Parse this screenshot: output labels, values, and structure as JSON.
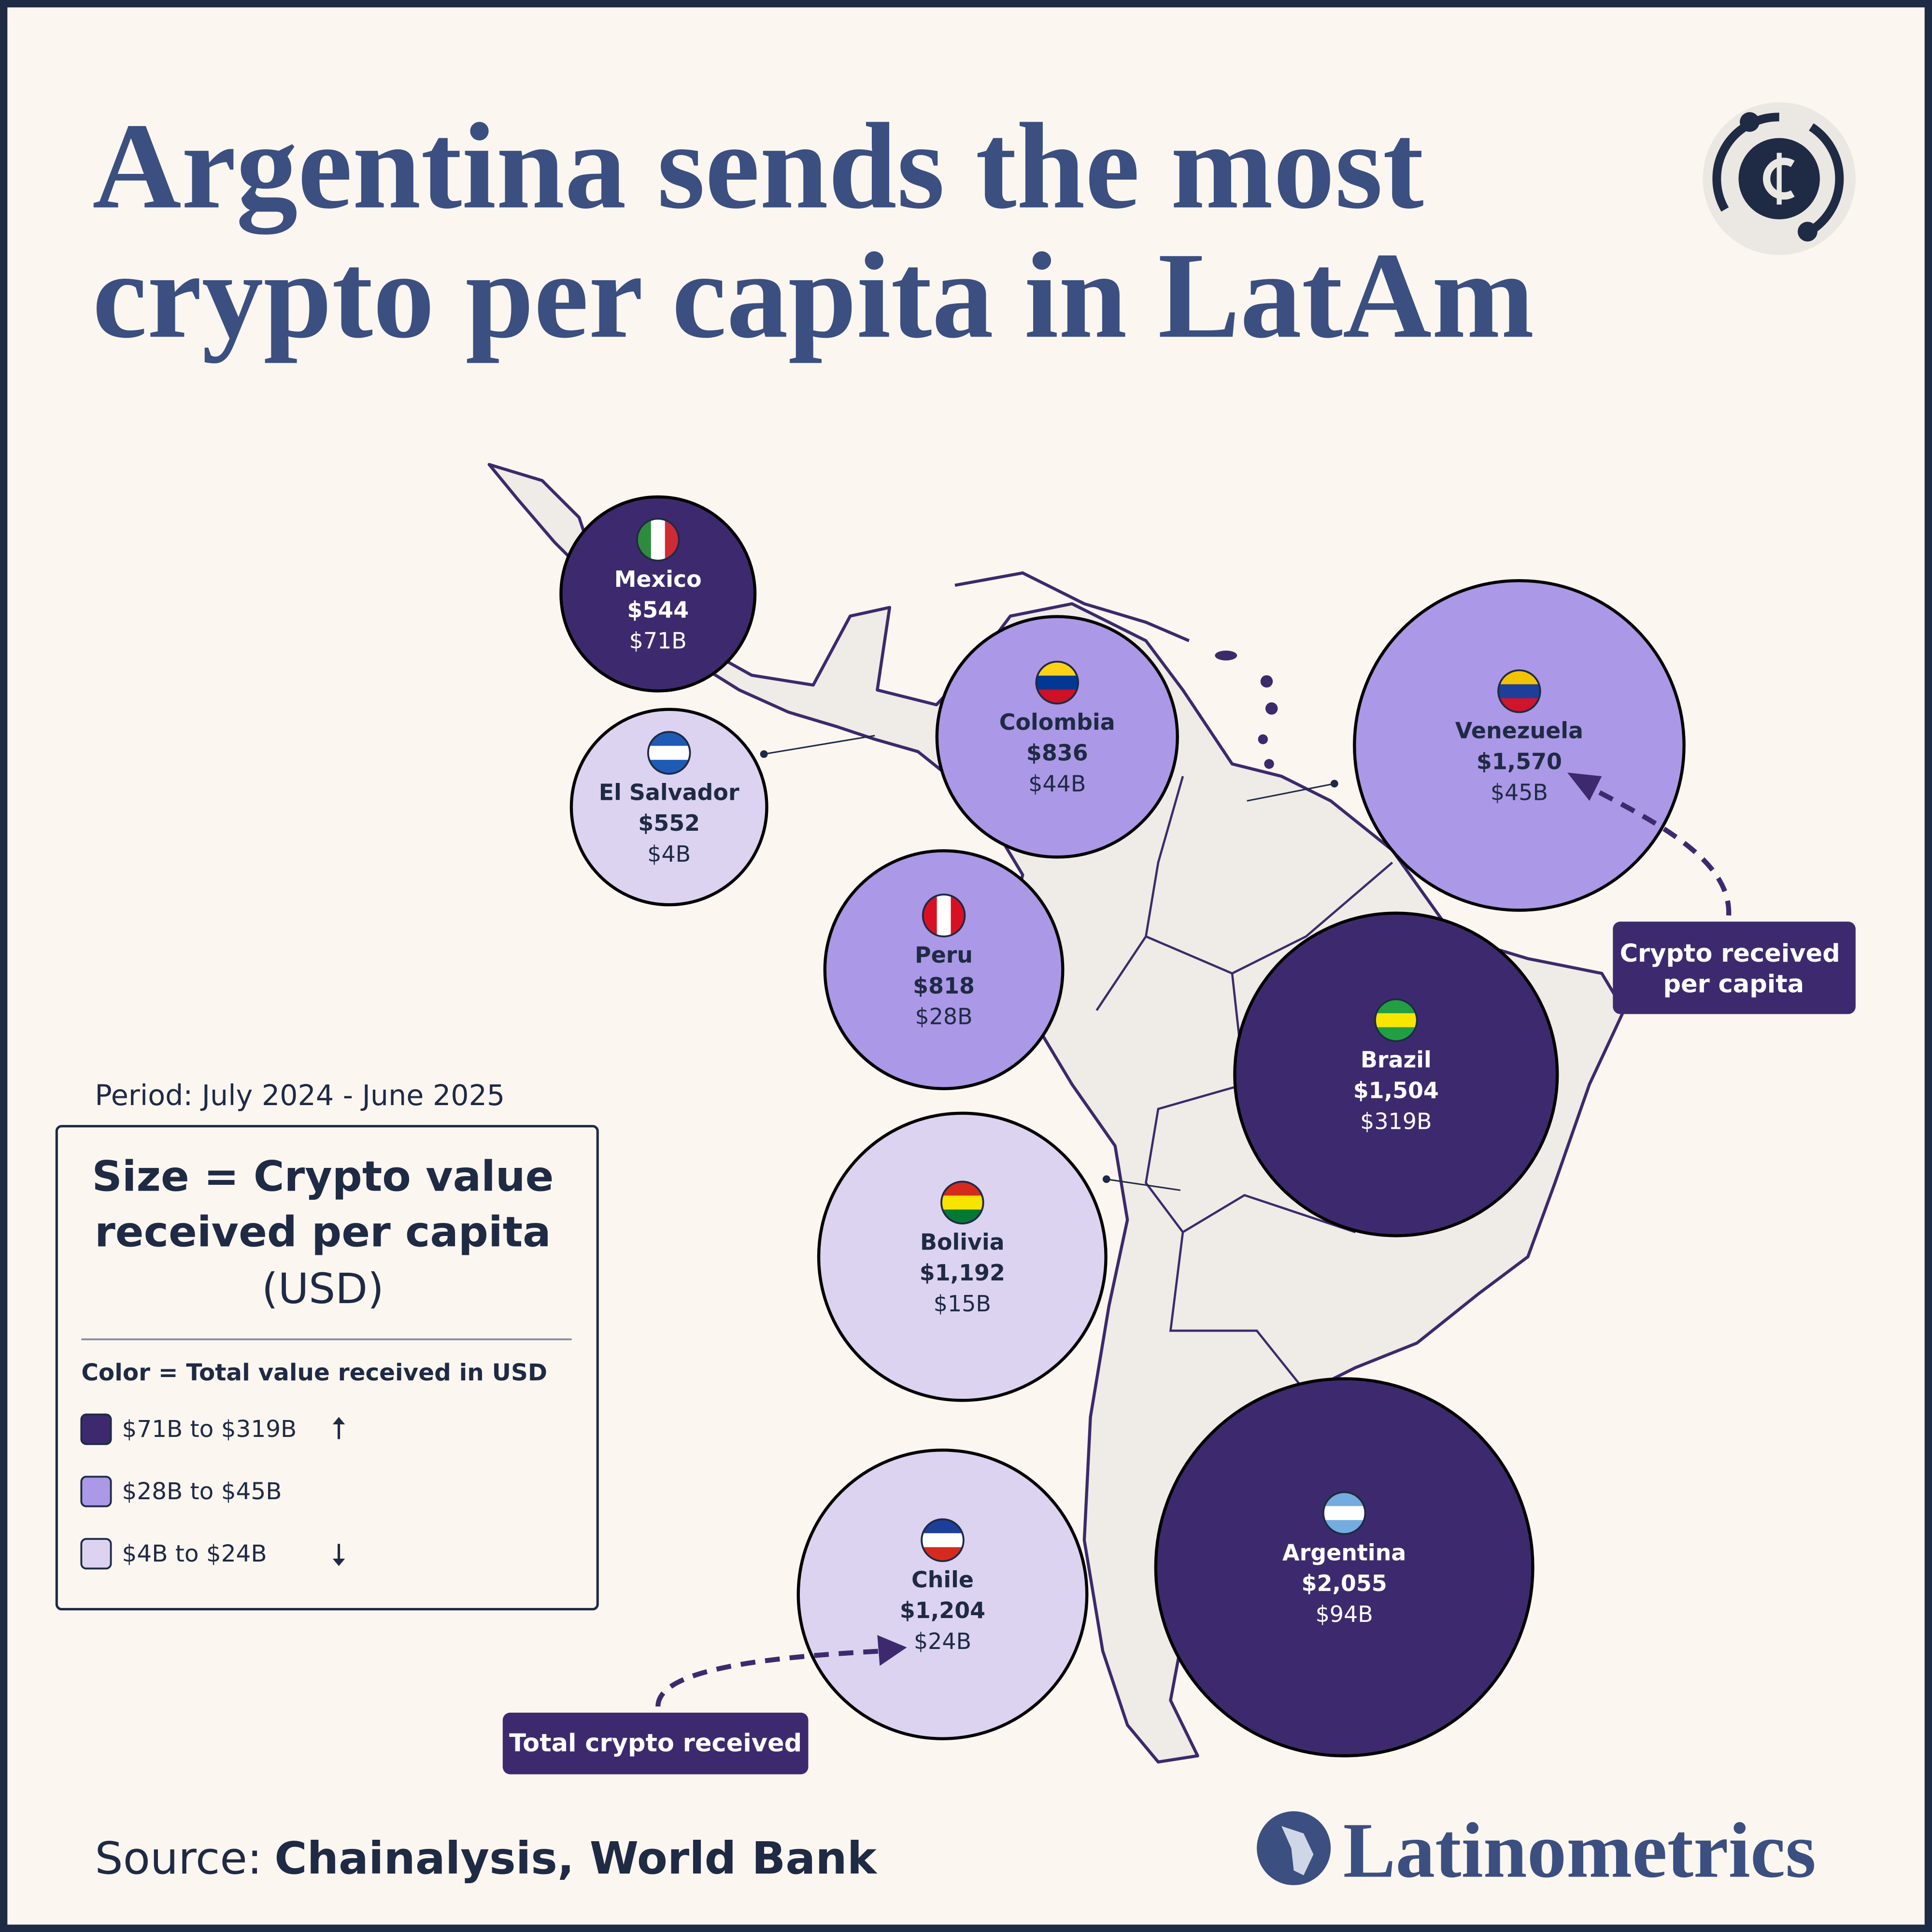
{
  "chart_data": {
    "type": "bubble",
    "title": [
      "Argentina sends the most",
      "crypto per capita in LatAm"
    ],
    "period": "Period: July 2024 - June 2025",
    "size_legend": [
      "Size = Crypto value",
      "received per capita",
      "(USD)"
    ],
    "color_legend_title": "Color = Total value received in USD",
    "color_legend": [
      {
        "name": "$71B to $319B",
        "color": "#3d2a6e"
      },
      {
        "name": "$28B to $45B",
        "color": "#ab98e6"
      },
      {
        "name": "$4B to $24B",
        "color": "#dcd3f0"
      }
    ],
    "points": {
      "names": [
        "Mexico",
        "El Salvador",
        "Colombia",
        "Venezuela",
        "Peru",
        "Brazil",
        "Bolivia",
        "Chile",
        "Argentina"
      ],
      "values": [
        544,
        552,
        836,
        1570,
        818,
        1504,
        1192,
        1204,
        2055
      ],
      "value_labels": [
        "$544",
        "$552",
        "$836",
        "$1,570",
        "$818",
        "$1,504",
        "$1,192",
        "$1,204",
        "$2,055"
      ],
      "totals": [
        71,
        4,
        44,
        45,
        28,
        319,
        15,
        24,
        94
      ],
      "total_labels": [
        "$71B",
        "$4B",
        "$44B",
        "$45B",
        "$28B",
        "$319B",
        "$15B",
        "$24B",
        "$94B"
      ],
      "colors": [
        "#3d2a6e",
        "#dcd3f0",
        "#ab98e6",
        "#ab98e6",
        "#ab98e6",
        "#3d2a6e",
        "#dcd3f0",
        "#dcd3f0",
        "#3d2a6e"
      ]
    },
    "callouts": [
      [
        "Crypto received",
        "per capita"
      ],
      [
        "Total crypto received"
      ]
    ],
    "source_label": "Source:",
    "source": "Chainalysis, World Bank",
    "brand": "Latinometrics"
  }
}
